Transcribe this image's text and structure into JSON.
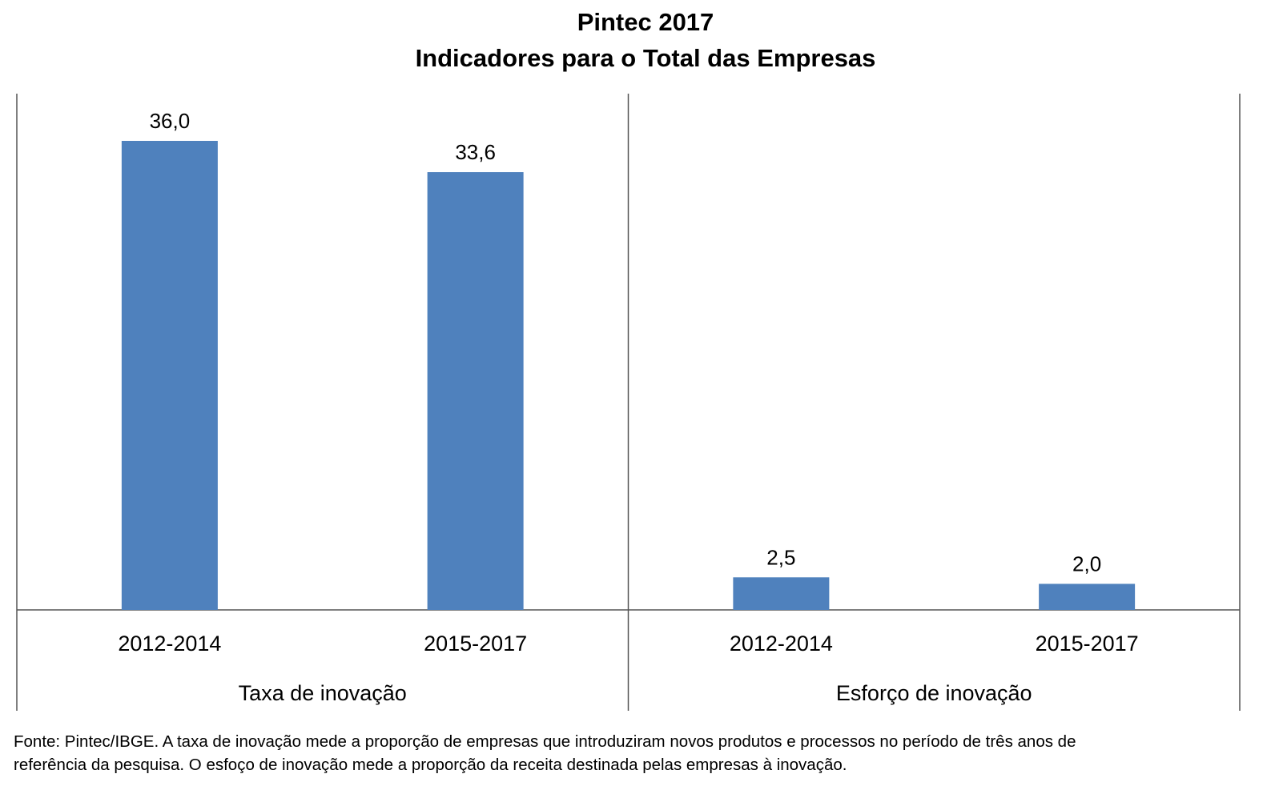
{
  "chart_data": {
    "type": "bar",
    "title": "Pintec 2017",
    "subtitle": "Indicadores para o Total das Empresas",
    "groups": [
      {
        "name": "Taxa de inovação",
        "categories": [
          "2012-2014",
          "2015-2017"
        ],
        "values": [
          36.0,
          33.6
        ],
        "labels": [
          "36,0",
          "33,6"
        ]
      },
      {
        "name": "Esforço de inovação",
        "categories": [
          "2012-2014",
          "2015-2017"
        ],
        "values": [
          2.5,
          2.0
        ],
        "labels": [
          "2,5",
          "2,0"
        ]
      }
    ],
    "ylim": [
      0,
      40
    ],
    "grid": false,
    "bar_color": "#4F81BD"
  },
  "footnote": {
    "line1": "Fonte: Pintec/IBGE. A taxa de inovação mede a proporção de empresas que introduziram novos produtos e processos no período de três anos de",
    "line2": "referência da pesquisa. O esfoço de inovação mede a proporção da receita destinada pelas empresas à inovação."
  }
}
